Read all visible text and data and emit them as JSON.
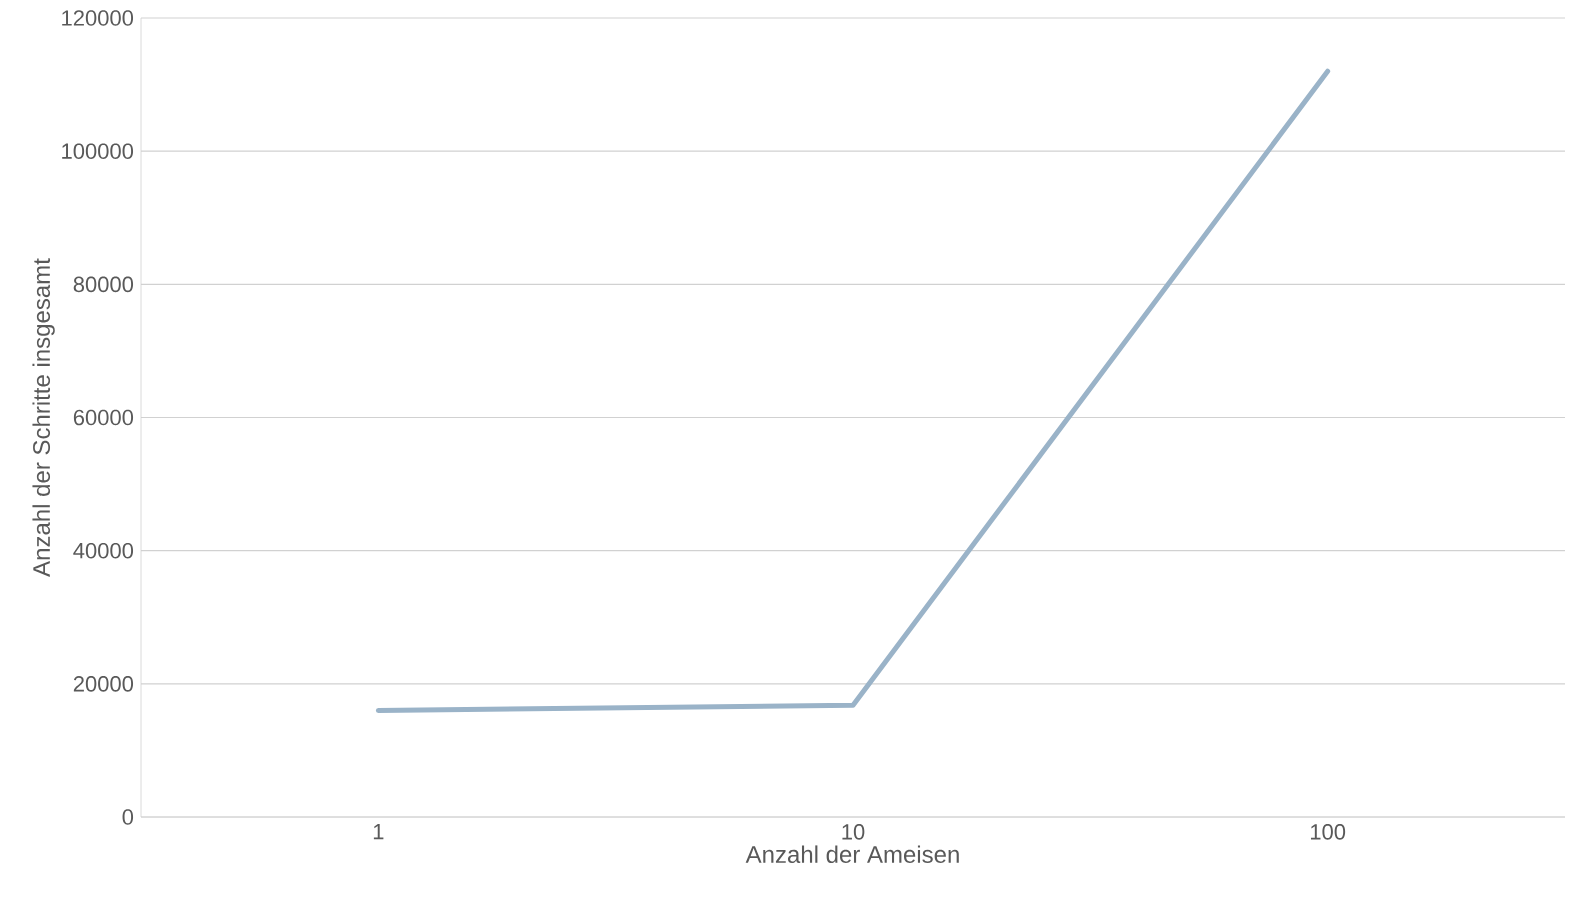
{
  "chart_data": {
    "type": "line",
    "xlabel": "Anzahl der Ameisen",
    "ylabel": "Anzahl der Schritte insgesamt",
    "categories": [
      "1",
      "10",
      "100"
    ],
    "values": [
      16000,
      16800,
      112000
    ],
    "color": "#9ab3c8",
    "ylim": [
      0,
      120000
    ],
    "yticks": [
      0,
      20000,
      40000,
      60000,
      80000,
      100000,
      120000
    ],
    "grid": "y"
  }
}
